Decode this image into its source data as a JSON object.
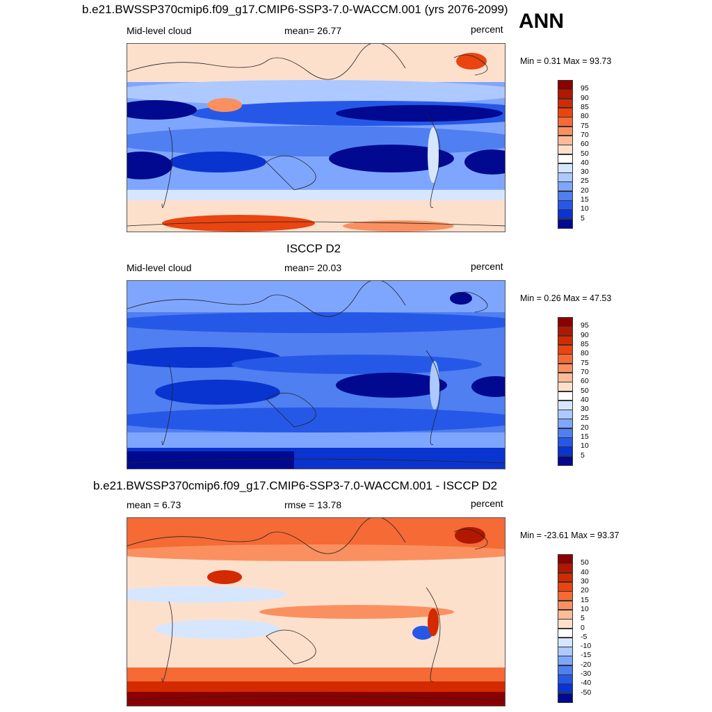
{
  "season": "ANN",
  "panels": [
    {
      "title": "b.e21.BWSSP370cmip6.f09_g17.CMIP6-SSP3-7.0-WACCM.001 (yrs 2076-2099)",
      "left": "Mid-level cloud",
      "center": "mean=  26.77",
      "right": "percent",
      "minmax": "Min =   0.31 Max =  93.73"
    },
    {
      "title": "ISCCP D2",
      "left": "Mid-level cloud",
      "center": "mean=  20.03",
      "right": "percent",
      "minmax": "Min =   0.26 Max =  47.53"
    },
    {
      "title": "b.e21.BWSSP370cmip6.f09_g17.CMIP6-SSP3-7.0-WACCM.001 - ISCCP D2",
      "left": "mean =   6.73",
      "center": "rmse =  13.78",
      "right": "percent",
      "minmax": "Min = -23.61 Max =  93.37"
    }
  ],
  "colorbars": {
    "abs_labels": [
      "95",
      "90",
      "85",
      "80",
      "75",
      "70",
      "60",
      "50",
      "40",
      "30",
      "25",
      "20",
      "15",
      "10",
      "5"
    ],
    "diff_labels": [
      "50",
      "40",
      "30",
      "20",
      "15",
      "10",
      "5",
      "0",
      "-5",
      "-10",
      "-15",
      "-20",
      "-30",
      "-40",
      "-50"
    ],
    "palette": [
      "#8b0000",
      "#b01800",
      "#d42a00",
      "#ea4410",
      "#f56a35",
      "#fa9060",
      "#fdbb98",
      "#fde0cc",
      "#ffffff",
      "#d6e6ff",
      "#adc9ff",
      "#7fa6ff",
      "#4f7ff0",
      "#2658e8",
      "#0a34d0",
      "#00098f"
    ]
  },
  "chart_data": [
    {
      "type": "heatmap",
      "title": "b.e21.BWSSP370cmip6.f09_g17.CMIP6-SSP3-7.0-WACCM.001 (yrs 2076-2099)",
      "variable": "Mid-level cloud",
      "units": "percent",
      "mean": 26.77,
      "min": 0.31,
      "max": 93.73,
      "levels": [
        5,
        10,
        15,
        20,
        25,
        30,
        40,
        50,
        60,
        70,
        75,
        80,
        85,
        90,
        95
      ]
    },
    {
      "type": "heatmap",
      "title": "ISCCP D2",
      "variable": "Mid-level cloud",
      "units": "percent",
      "mean": 20.03,
      "min": 0.26,
      "max": 47.53,
      "levels": [
        5,
        10,
        15,
        20,
        25,
        30,
        40,
        50,
        60,
        70,
        75,
        80,
        85,
        90,
        95
      ]
    },
    {
      "type": "heatmap",
      "title": "b.e21.BWSSP370cmip6.f09_g17.CMIP6-SSP3-7.0-WACCM.001 - ISCCP D2",
      "units": "percent",
      "mean": 6.73,
      "rmse": 13.78,
      "min": -23.61,
      "max": 93.37,
      "levels": [
        -50,
        -40,
        -30,
        -20,
        -15,
        -10,
        -5,
        0,
        5,
        10,
        15,
        20,
        30,
        40,
        50
      ]
    }
  ]
}
